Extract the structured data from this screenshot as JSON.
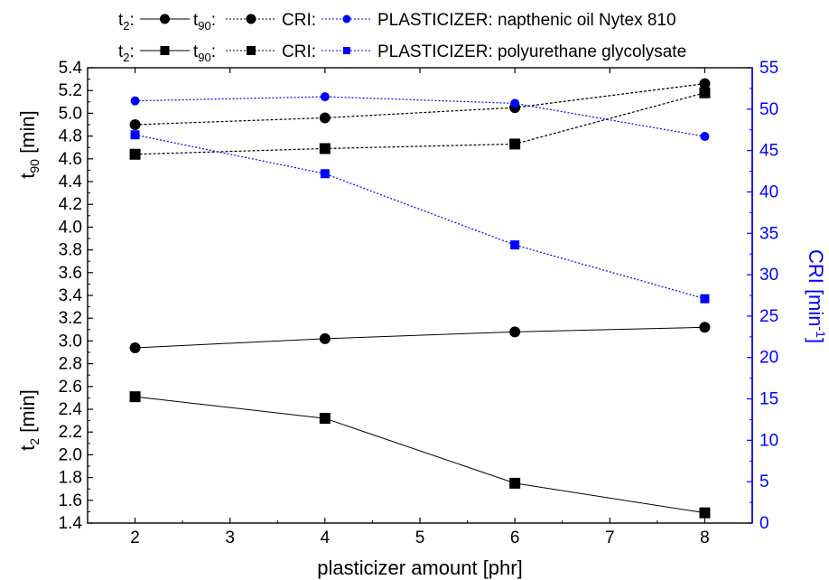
{
  "chart_data": {
    "type": "line",
    "xlabel": "plasticizer amount [phr]",
    "x_ticks": [
      2,
      3,
      4,
      5,
      6,
      7,
      8
    ],
    "xlim": [
      1.5,
      8.5
    ],
    "left_axis": {
      "label_t90": "t90 [min]",
      "label_t2": "t2 [min]",
      "ylim": [
        1.4,
        5.4
      ],
      "ticks": [
        "1.4",
        "1.6",
        "1.8",
        "2.0",
        "2.2",
        "2.4",
        "2.6",
        "2.8",
        "3.0",
        "3.2",
        "3.4",
        "3.6",
        "3.8",
        "4.0",
        "4.2",
        "4.4",
        "4.6",
        "4.8",
        "5.0",
        "5.2",
        "5.4"
      ]
    },
    "right_axis": {
      "label": "CRI [min-1]",
      "ylim": [
        0,
        55
      ],
      "ticks": [
        "0",
        "5",
        "10",
        "15",
        "20",
        "25",
        "30",
        "35",
        "40",
        "45",
        "50",
        "55"
      ],
      "color": "#0000ff"
    },
    "legend": {
      "rows": [
        {
          "t2": "t2:",
          "t90": "t90:",
          "cri": "CRI:",
          "plasticizer": "PLASTICIZER: napthenic oil Nytex 810",
          "marker": "circle"
        },
        {
          "t2": "t2:",
          "t90": "t90:",
          "cri": "CRI:",
          "plasticizer": "PLASTICIZER: polyurethane glycolysate",
          "marker": "square"
        }
      ]
    },
    "x": [
      2,
      4,
      6,
      8
    ],
    "series": [
      {
        "quantity": "t2",
        "marker": "circle",
        "axis": "left",
        "color": "#000000",
        "line": "solid",
        "values": [
          2.94,
          3.02,
          3.08,
          3.12
        ]
      },
      {
        "quantity": "t2",
        "marker": "square",
        "axis": "left",
        "color": "#000000",
        "line": "solid",
        "values": [
          2.51,
          2.32,
          1.75,
          1.49
        ]
      },
      {
        "quantity": "t90",
        "marker": "circle",
        "axis": "left",
        "color": "#000000",
        "line": "dotted",
        "values": [
          4.9,
          4.96,
          5.05,
          5.26
        ]
      },
      {
        "quantity": "t90",
        "marker": "square",
        "axis": "left",
        "color": "#000000",
        "line": "dotted",
        "values": [
          4.64,
          4.69,
          4.73,
          5.18
        ]
      },
      {
        "quantity": "CRI",
        "marker": "circle",
        "axis": "right",
        "color": "#0000ff",
        "line": "dotted",
        "values": [
          51.0,
          51.5,
          50.7,
          46.7
        ]
      },
      {
        "quantity": "CRI",
        "marker": "square",
        "axis": "right",
        "color": "#0000ff",
        "line": "dotted",
        "values": [
          46.9,
          42.2,
          33.6,
          27.1
        ]
      }
    ]
  }
}
